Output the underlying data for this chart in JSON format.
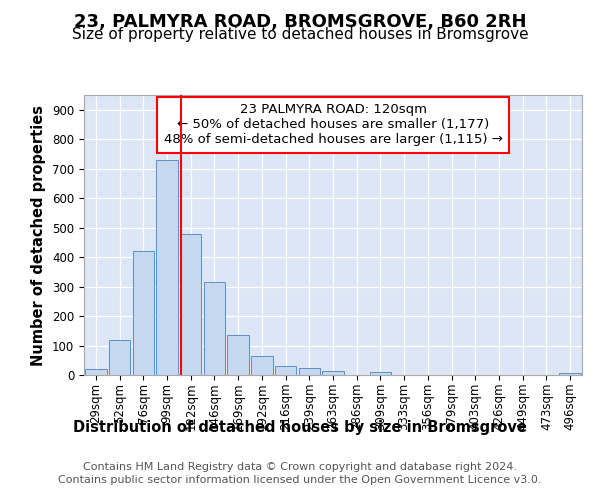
{
  "title": "23, PALMYRA ROAD, BROMSGROVE, B60 2RH",
  "subtitle": "Size of property relative to detached houses in Bromsgrove",
  "xlabel": "Distribution of detached houses by size in Bromsgrove",
  "ylabel": "Number of detached properties",
  "categories": [
    "29sqm",
    "52sqm",
    "76sqm",
    "99sqm",
    "122sqm",
    "146sqm",
    "169sqm",
    "192sqm",
    "216sqm",
    "239sqm",
    "263sqm",
    "286sqm",
    "309sqm",
    "333sqm",
    "356sqm",
    "379sqm",
    "403sqm",
    "426sqm",
    "449sqm",
    "473sqm",
    "496sqm"
  ],
  "bar_heights": [
    20,
    120,
    420,
    730,
    480,
    315,
    135,
    65,
    30,
    25,
    15,
    0,
    10,
    0,
    0,
    0,
    0,
    0,
    0,
    0,
    8
  ],
  "bar_color": "#c5d8ee",
  "bar_edge_color": "#5b8fc9",
  "annotation_line1": "23 PALMYRA ROAD: 120sqm",
  "annotation_line2": "← 50% of detached houses are smaller (1,177)",
  "annotation_line3": "48% of semi-detached houses are larger (1,115) →",
  "vline_index": 4,
  "ylim": [
    0,
    950
  ],
  "yticks": [
    0,
    100,
    200,
    300,
    400,
    500,
    600,
    700,
    800,
    900
  ],
  "footer1": "Contains HM Land Registry data © Crown copyright and database right 2024.",
  "footer2": "Contains public sector information licensed under the Open Government Licence v3.0.",
  "plot_bg_color": "#dce6f5",
  "title_fontsize": 13,
  "subtitle_fontsize": 11,
  "axis_label_fontsize": 10.5,
  "tick_fontsize": 8.5,
  "annotation_fontsize": 9.5,
  "footer_fontsize": 8
}
